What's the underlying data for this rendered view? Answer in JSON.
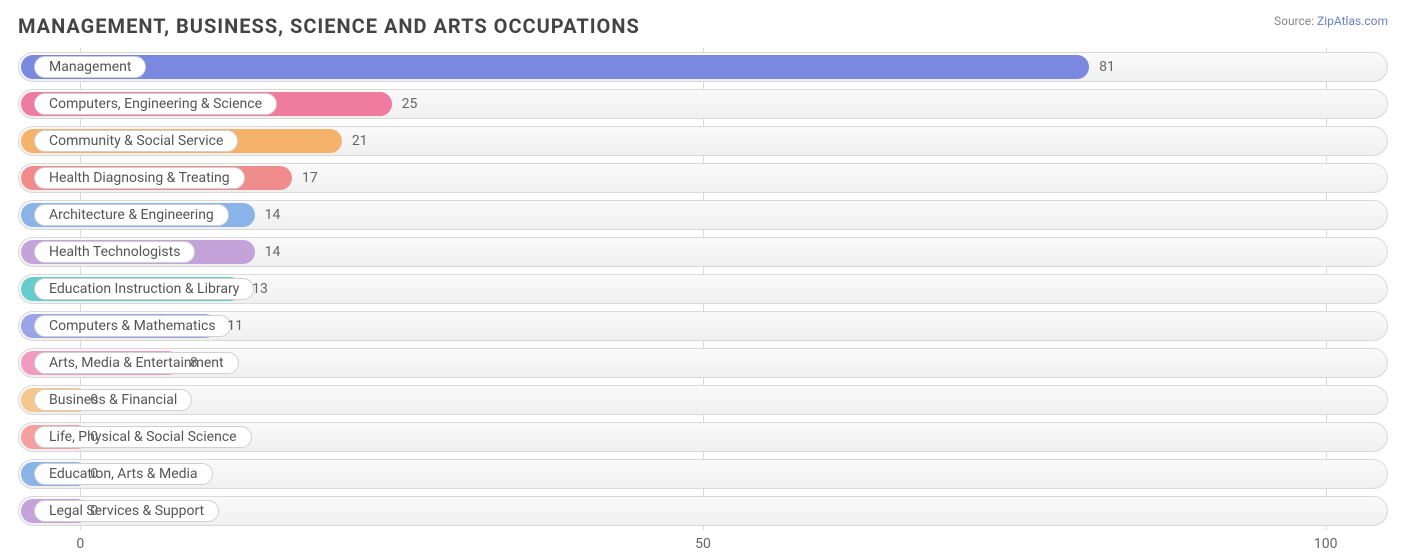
{
  "title": "MANAGEMENT, BUSINESS, SCIENCE AND ARTS OCCUPATIONS",
  "source_prefix": "Source: ",
  "source_name": "ZipAtlas.com",
  "chart": {
    "type": "bar",
    "orientation": "horizontal",
    "x_min": -5,
    "x_max": 105,
    "ticks": [
      0,
      50,
      100
    ],
    "track_border": "#d9d9d9",
    "track_bg_top": "#fafafa",
    "track_bg_bottom": "#f0f0f0",
    "grid_color": "#d9d9d9",
    "pill_bg": "#ffffff",
    "pill_border": "#d0d0d0",
    "text_color": "#555555",
    "axis_text_color": "#666666",
    "bars": [
      {
        "label": "Management",
        "value": 81,
        "color": "#7a88e0"
      },
      {
        "label": "Computers, Engineering & Science",
        "value": 25,
        "color": "#ef7ba0"
      },
      {
        "label": "Community & Social Service",
        "value": 21,
        "color": "#f5b26b"
      },
      {
        "label": "Health Diagnosing & Treating",
        "value": 17,
        "color": "#f08c8c"
      },
      {
        "label": "Architecture & Engineering",
        "value": 14,
        "color": "#8ab4e8"
      },
      {
        "label": "Health Technologists",
        "value": 14,
        "color": "#c3a3d9"
      },
      {
        "label": "Education Instruction & Library",
        "value": 13,
        "color": "#66cccc"
      },
      {
        "label": "Computers & Mathematics",
        "value": 11,
        "color": "#9aa4e6"
      },
      {
        "label": "Arts, Media & Entertainment",
        "value": 8,
        "color": "#f29ac0"
      },
      {
        "label": "Business & Financial",
        "value": 0,
        "color": "#f5c78b"
      },
      {
        "label": "Life, Physical & Social Science",
        "value": 0,
        "color": "#f4a0a0"
      },
      {
        "label": "Education, Arts & Media",
        "value": 0,
        "color": "#8ab4e8"
      },
      {
        "label": "Legal Services & Support",
        "value": 0,
        "color": "#c3a3d9"
      }
    ]
  }
}
